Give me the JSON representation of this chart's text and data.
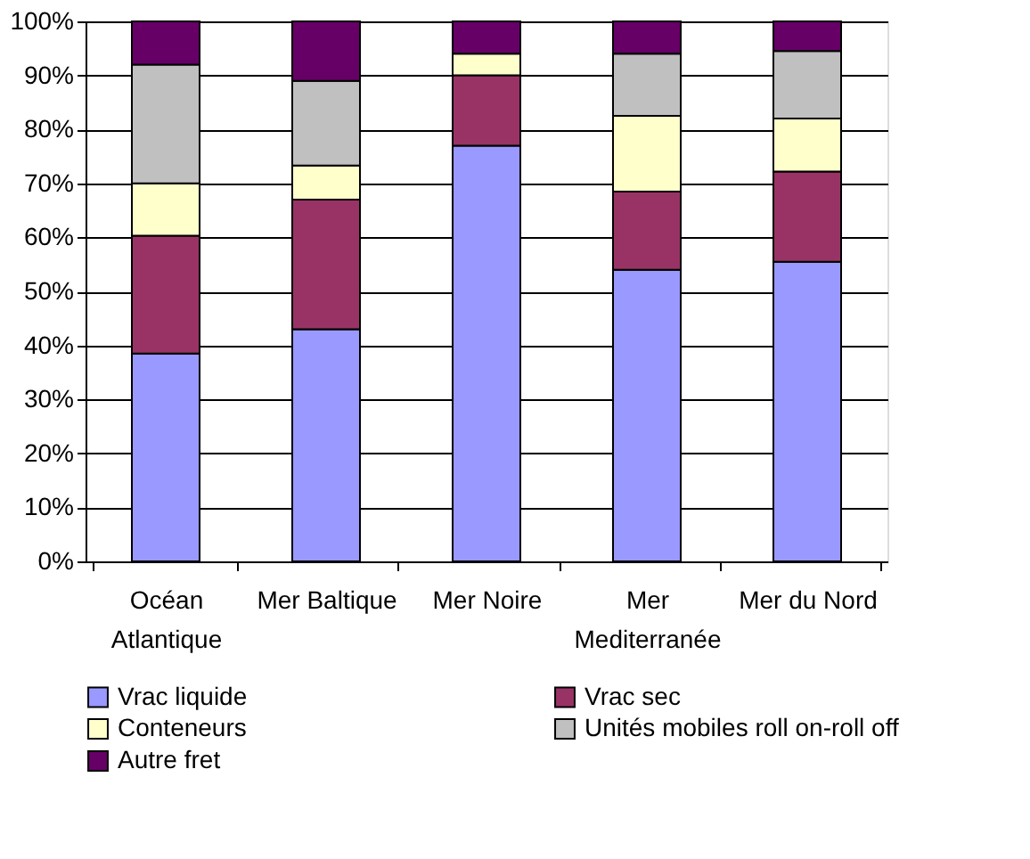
{
  "chart_data": {
    "type": "bar",
    "stacked": true,
    "categories": [
      "Océan Atlantique",
      "Mer Baltique",
      "Mer Noire",
      "Mer Mediterranée",
      "Mer du Nord"
    ],
    "series": [
      {
        "name": "Vrac liquide",
        "color": "#9999ff",
        "values": [
          38.5,
          43,
          77,
          54,
          55.5
        ]
      },
      {
        "name": "Vrac sec",
        "color": "#993366",
        "values": [
          21.8,
          24,
          13,
          14.5,
          16.7
        ]
      },
      {
        "name": "Conteneurs",
        "color": "#ffffcc",
        "values": [
          9.7,
          6.3,
          4,
          14,
          9.8
        ]
      },
      {
        "name": "Unités mobiles roll on-roll off",
        "color": "#c0c0c0",
        "values": [
          22,
          15.7,
          0,
          11.5,
          12.5
        ]
      },
      {
        "name": "Autre fret",
        "color": "#660066",
        "values": [
          8,
          11,
          6,
          6,
          5.5
        ]
      }
    ],
    "ylim": [
      0,
      100
    ],
    "yticks": [
      {
        "value": 0,
        "label": "0%"
      },
      {
        "value": 10,
        "label": "10%"
      },
      {
        "value": 20,
        "label": "20%"
      },
      {
        "value": 30,
        "label": "30%"
      },
      {
        "value": 40,
        "label": "40%"
      },
      {
        "value": 50,
        "label": "50%"
      },
      {
        "value": 60,
        "label": "60%"
      },
      {
        "value": 70,
        "label": "70%"
      },
      {
        "value": 80,
        "label": "80%"
      },
      {
        "value": 90,
        "label": "90%"
      },
      {
        "value": 100,
        "label": "100%"
      }
    ],
    "grid": "y",
    "legend": "bottom"
  }
}
